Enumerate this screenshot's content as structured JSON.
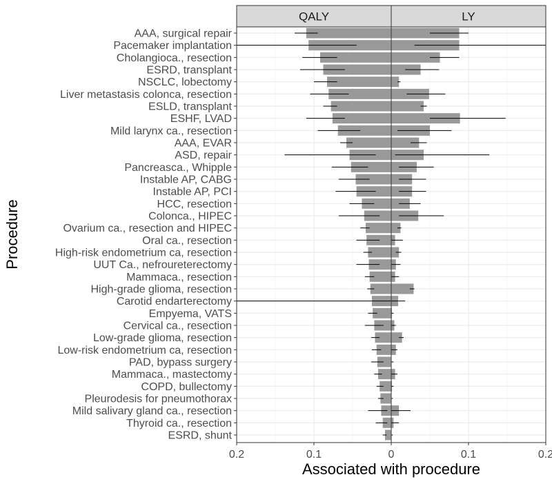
{
  "chart_data": {
    "type": "bar",
    "orientation": "horizontal",
    "facets": [
      "QALY",
      "LY"
    ],
    "xlabel": "Associated with procedure",
    "ylabel": "Procedure",
    "xlim": [
      0,
      0.2
    ],
    "xticks": {
      "QALY": [
        {
          "value": 0.2,
          "label": "0.2"
        },
        {
          "value": 0.1,
          "label": "0.1"
        },
        {
          "value": 0,
          "label": "0"
        }
      ],
      "LY": [
        {
          "value": 0.1,
          "label": "0.1"
        },
        {
          "value": 0.2,
          "label": "0.2"
        }
      ]
    },
    "grid": true,
    "categories": [
      "AAA, surgical repair",
      "Pacemaker implantation",
      "Cholangioca., resection",
      "ESRD, transplant",
      "NSCLC, lobectomy",
      "Liver metastasis colonca, resection",
      "ESLD, transplant",
      "ESHF, LVAD",
      "Mild larynx ca., resection",
      "AAA, EVAR",
      "ASD, repair",
      "Pancreasca., Whipple",
      "Instable AP, CABG",
      "Instable AP, PCI",
      "HCC, resection",
      "Colonca., HIPEC",
      "Ovarium ca., resection and HIPEC",
      "Oral ca., resection",
      "High-risk endometrium ca, resection",
      "UUT Ca., nefroureterectomy",
      "Mammaca., resection",
      "High-grade glioma, resection",
      "Carotid endarterectomy",
      "Empyema, VATS",
      "Cervical ca., resection",
      "Low-grade glioma, resection",
      "Low-risk endometrium ca, resection",
      "PAD, bypass surgery",
      "Mammaca., mastectomy",
      "COPD, bullectomy",
      "Pleurodesis for pneumothorax",
      "Mild salivary gland ca., resection",
      "Thyroid ca., resection",
      "ESRD, shunt"
    ],
    "series": [
      {
        "facet": "QALY",
        "values": [
          0.11,
          0.107,
          0.092,
          0.088,
          0.083,
          0.081,
          0.078,
          0.076,
          0.069,
          0.058,
          0.054,
          0.052,
          0.046,
          0.045,
          0.038,
          0.035,
          0.033,
          0.032,
          0.03,
          0.029,
          0.028,
          0.027,
          0.025,
          0.024,
          0.022,
          0.021,
          0.019,
          0.018,
          0.017,
          0.015,
          0.014,
          0.013,
          0.011,
          0.008
        ],
        "err_low": [
          0.095,
          0.045,
          0.07,
          0.06,
          0.07,
          0.055,
          0.07,
          0.06,
          0.04,
          0.05,
          0.02,
          0.03,
          0.028,
          0.02,
          0.022,
          0.015,
          0.028,
          0.015,
          0.025,
          0.015,
          0.022,
          0.022,
          0.0,
          0.018,
          0.01,
          0.015,
          0.013,
          0.01,
          0.012,
          0.01,
          0.01,
          0.005,
          0.005,
          0.006
        ],
        "err_high": [
          0.125,
          0.215,
          0.115,
          0.118,
          0.1,
          0.105,
          0.088,
          0.11,
          0.095,
          0.066,
          0.138,
          0.077,
          0.068,
          0.072,
          0.054,
          0.068,
          0.04,
          0.045,
          0.036,
          0.045,
          0.034,
          0.031,
          0.2,
          0.03,
          0.034,
          0.026,
          0.025,
          0.026,
          0.022,
          0.019,
          0.017,
          0.03,
          0.02,
          0.011
        ]
      },
      {
        "facet": "LY",
        "values": [
          0.088,
          0.088,
          0.063,
          0.038,
          0.01,
          0.049,
          0.042,
          0.089,
          0.05,
          0.036,
          0.042,
          0.033,
          0.027,
          0.027,
          0.024,
          0.035,
          0.012,
          0.005,
          0.01,
          0.006,
          0.005,
          0.029,
          0.009,
          0.001,
          0.004,
          0.014,
          0.006,
          0.0,
          0.005,
          0.001,
          0.0,
          0.01,
          0.003,
          0.0
        ],
        "err_low": [
          0.05,
          0.03,
          0.05,
          0.018,
          0.008,
          0.02,
          0.038,
          0.05,
          0.008,
          0.025,
          0.005,
          0.01,
          0.01,
          0.01,
          0.01,
          0.01,
          0.008,
          0.0,
          0.006,
          0.0,
          0.0,
          0.024,
          0.0,
          0.0,
          0.0,
          0.01,
          0.0,
          0.0,
          0.0,
          0.0,
          0.0,
          0.0,
          0.0,
          0.0
        ],
        "err_high": [
          0.1,
          0.2,
          0.088,
          0.062,
          0.012,
          0.07,
          0.046,
          0.148,
          0.078,
          0.046,
          0.127,
          0.055,
          0.045,
          0.045,
          0.038,
          0.068,
          0.013,
          0.015,
          0.013,
          0.012,
          0.01,
          0.03,
          0.018,
          0.003,
          0.006,
          0.016,
          0.008,
          0.003,
          0.008,
          0.003,
          0.002,
          0.025,
          0.01,
          0.002
        ]
      }
    ]
  },
  "colors": {
    "bar": "#999999",
    "errorbar": "#000000",
    "strip_fill": "#d9d9d9",
    "strip_border": "#333333",
    "panel_border": "#333333",
    "grid_major": "#ebebeb",
    "grid_minor": "#f5f5f5"
  }
}
